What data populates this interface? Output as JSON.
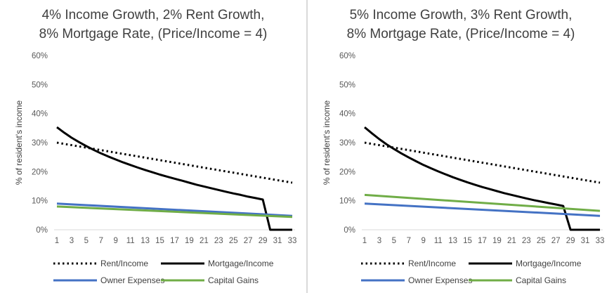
{
  "chart_data": [
    {
      "type": "line",
      "title_lines": [
        "4% Income Growth, 2% Rent Growth,",
        "8% Mortgage Rate, (Price/Income = 4)"
      ],
      "ylabel": "% of resident's income",
      "xlabel": "",
      "y_ticks": [
        "0%",
        "10%",
        "20%",
        "30%",
        "40%",
        "50%",
        "60%"
      ],
      "ylim": [
        0,
        60
      ],
      "x_ticks": [
        "1",
        "3",
        "5",
        "7",
        "9",
        "11",
        "13",
        "15",
        "17",
        "19",
        "21",
        "23",
        "25",
        "27",
        "29",
        "31",
        "33"
      ],
      "xlim": [
        1,
        33
      ],
      "grid": false,
      "legend": "bottom",
      "series": [
        {
          "name": "Rent/Income",
          "color": "#000000",
          "style": "dotted",
          "x": [
            1,
            33
          ],
          "values": [
            30.0,
            16.2
          ]
        },
        {
          "name": "Mortgage/Income",
          "color": "#000000",
          "style": "solid",
          "x": [
            1,
            2,
            3,
            4,
            5,
            6,
            7,
            8,
            9,
            10,
            11,
            12,
            13,
            14,
            15,
            16,
            17,
            18,
            19,
            20,
            21,
            22,
            23,
            24,
            25,
            26,
            27,
            28,
            29,
            30,
            31,
            32,
            33
          ],
          "values": [
            35.3,
            33.4,
            31.7,
            30.2,
            28.8,
            27.5,
            26.3,
            25.2,
            24.2,
            23.2,
            22.3,
            21.4,
            20.6,
            19.8,
            19.0,
            18.3,
            17.6,
            16.9,
            16.2,
            15.5,
            14.9,
            14.3,
            13.7,
            13.1,
            12.5,
            12.0,
            11.4,
            10.9,
            10.4,
            0,
            0,
            0,
            0
          ]
        },
        {
          "name": "Owner Expenses",
          "color": "#4472c4",
          "style": "solid",
          "x": [
            1,
            33
          ],
          "values": [
            9.0,
            4.8
          ]
        },
        {
          "name": "Capital Gains",
          "color": "#70ad47",
          "style": "solid",
          "x": [
            1,
            33
          ],
          "values": [
            8.0,
            4.4
          ]
        }
      ]
    },
    {
      "type": "line",
      "title_lines": [
        "5% Income Growth, 3% Rent Growth,",
        "8% Mortgage Rate, (Price/Income = 4)"
      ],
      "ylabel": "% of resident's income",
      "xlabel": "",
      "y_ticks": [
        "0%",
        "10%",
        "20%",
        "30%",
        "40%",
        "50%",
        "60%"
      ],
      "ylim": [
        0,
        60
      ],
      "x_ticks": [
        "1",
        "3",
        "5",
        "7",
        "9",
        "11",
        "13",
        "15",
        "17",
        "19",
        "21",
        "23",
        "25",
        "27",
        "29",
        "31",
        "33"
      ],
      "xlim": [
        1,
        33
      ],
      "grid": false,
      "legend": "bottom",
      "series": [
        {
          "name": "Rent/Income",
          "color": "#000000",
          "style": "dotted",
          "x": [
            1,
            33
          ],
          "values": [
            30.0,
            16.2
          ]
        },
        {
          "name": "Mortgage/Income",
          "color": "#000000",
          "style": "solid",
          "x": [
            1,
            2,
            3,
            4,
            5,
            6,
            7,
            8,
            9,
            10,
            11,
            12,
            13,
            14,
            15,
            16,
            17,
            18,
            19,
            20,
            21,
            22,
            23,
            24,
            25,
            26,
            27,
            28,
            29,
            30,
            31,
            32,
            33
          ],
          "values": [
            35.3,
            33.2,
            31.2,
            29.4,
            27.8,
            26.3,
            24.9,
            23.6,
            22.3,
            21.2,
            20.1,
            19.1,
            18.1,
            17.2,
            16.3,
            15.5,
            14.7,
            14.0,
            13.3,
            12.6,
            12.0,
            11.4,
            10.8,
            10.2,
            9.7,
            9.2,
            8.7,
            8.2,
            0,
            0,
            0,
            0,
            0
          ]
        },
        {
          "name": "Owner Expenses",
          "color": "#4472c4",
          "style": "solid",
          "x": [
            1,
            33
          ],
          "values": [
            9.0,
            4.8
          ]
        },
        {
          "name": "Capital Gains",
          "color": "#70ad47",
          "style": "solid",
          "x": [
            1,
            33
          ],
          "values": [
            12.0,
            6.5
          ]
        }
      ]
    }
  ]
}
